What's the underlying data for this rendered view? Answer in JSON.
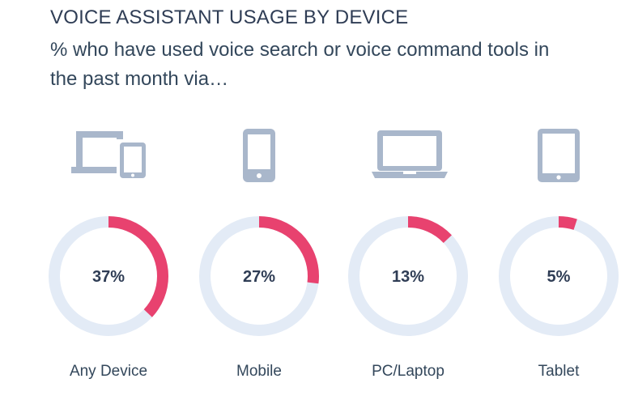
{
  "title": "VOICE ASSISTANT USAGE BY DEVICE",
  "subtitle": "% who have used voice search or voice command tools in the past month via…",
  "colors": {
    "accent": "#e8426f",
    "track": "#e3ebf6",
    "icon": "#a9b7cb",
    "text_dark": "#2f3d55",
    "text_body": "#33475b"
  },
  "chart_data": {
    "type": "pie",
    "title": "VOICE ASSISTANT USAGE BY DEVICE",
    "subtitle": "% who have used voice search or voice command tools in the past month via…",
    "categories": [
      "Any Device",
      "Mobile",
      "PC/Laptop",
      "Tablet"
    ],
    "values": [
      37,
      27,
      13,
      5
    ],
    "value_labels": [
      "37%",
      "27%",
      "13%",
      "5%"
    ],
    "icons": [
      "devices-icon",
      "smartphone-icon",
      "laptop-icon",
      "tablet-icon"
    ],
    "max": 100
  }
}
